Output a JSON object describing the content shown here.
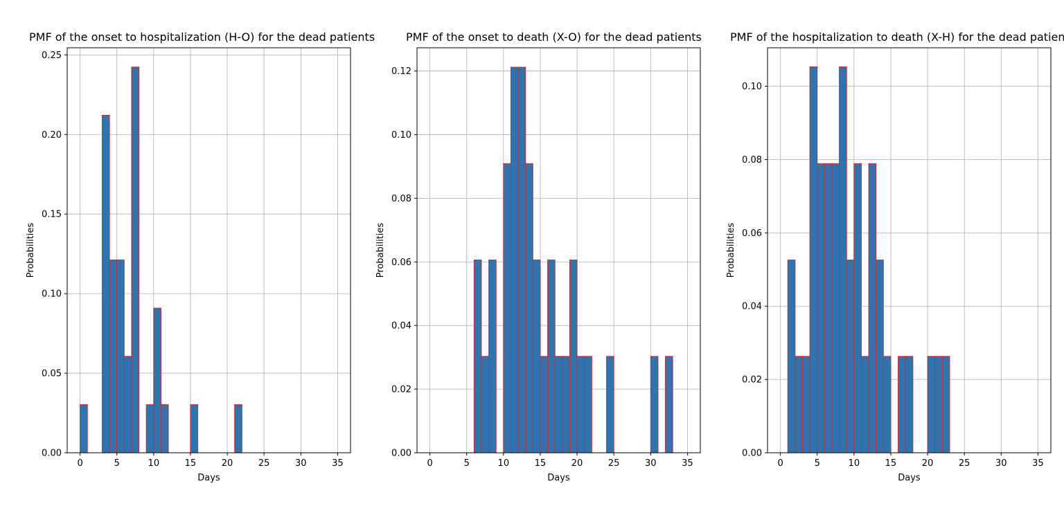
{
  "chart_data": [
    {
      "type": "bar",
      "title": "PMF of the onset to hospitalization (H-O) for the dead patients",
      "xlabel": "Days",
      "ylabel": "Probabilities",
      "xlim": [
        -1.75,
        36.75
      ],
      "ylim": [
        0,
        0.2545
      ],
      "xticks": [
        0,
        5,
        10,
        15,
        20,
        25,
        30,
        35
      ],
      "yticks": [
        0.0,
        0.05,
        0.1,
        0.15,
        0.2,
        0.25
      ],
      "ytick_labels": [
        "0.00",
        "0.05",
        "0.10",
        "0.15",
        "0.20",
        "0.25"
      ],
      "grid": true,
      "bin_width": 1,
      "x": [
        0,
        1,
        2,
        3,
        4,
        5,
        6,
        7,
        8,
        9,
        10,
        11,
        12,
        13,
        14,
        15,
        16,
        17,
        18,
        19,
        20,
        21,
        22,
        23,
        24,
        25,
        26,
        27,
        28,
        29,
        30,
        31,
        32,
        33,
        34
      ],
      "values": [
        0.0303,
        0,
        0,
        0.2121,
        0.1212,
        0.1212,
        0.0606,
        0.2424,
        0,
        0.0303,
        0.0909,
        0.0303,
        0,
        0,
        0,
        0.0303,
        0,
        0,
        0,
        0,
        0,
        0.0303,
        0,
        0,
        0,
        0,
        0,
        0,
        0,
        0,
        0,
        0,
        0,
        0,
        0
      ]
    },
    {
      "type": "bar",
      "title": "PMF of the onset to death (X-O) for the dead patients",
      "xlabel": "Days",
      "ylabel": "Probabilities",
      "xlim": [
        -1.75,
        36.75
      ],
      "ylim": [
        0,
        0.1273
      ],
      "xticks": [
        0,
        5,
        10,
        15,
        20,
        25,
        30,
        35
      ],
      "yticks": [
        0.0,
        0.02,
        0.04,
        0.06,
        0.08,
        0.1,
        0.12
      ],
      "ytick_labels": [
        "0.00",
        "0.02",
        "0.04",
        "0.06",
        "0.08",
        "0.10",
        "0.12"
      ],
      "grid": true,
      "bin_width": 1,
      "x": [
        0,
        1,
        2,
        3,
        4,
        5,
        6,
        7,
        8,
        9,
        10,
        11,
        12,
        13,
        14,
        15,
        16,
        17,
        18,
        19,
        20,
        21,
        22,
        23,
        24,
        25,
        26,
        27,
        28,
        29,
        30,
        31,
        32,
        33,
        34
      ],
      "values": [
        0,
        0,
        0,
        0,
        0,
        0,
        0.0606,
        0.0303,
        0.0606,
        0,
        0.0909,
        0.1212,
        0.1212,
        0.0909,
        0.0606,
        0.0303,
        0.0606,
        0.0303,
        0.0303,
        0.0606,
        0.0303,
        0.0303,
        0,
        0,
        0.0303,
        0,
        0,
        0,
        0,
        0,
        0.0303,
        0,
        0.0303,
        0,
        0
      ]
    },
    {
      "type": "bar",
      "title": "PMF of the hospitalization to death (X-H) for the dead patients",
      "xlabel": "Days",
      "ylabel": "Probabilities",
      "xlim": [
        -1.75,
        36.75
      ],
      "ylim": [
        0,
        0.1105
      ],
      "xticks": [
        0,
        5,
        10,
        15,
        20,
        25,
        30,
        35
      ],
      "yticks": [
        0.0,
        0.02,
        0.04,
        0.06,
        0.08,
        0.1
      ],
      "ytick_labels": [
        "0.00",
        "0.02",
        "0.04",
        "0.06",
        "0.08",
        "0.10"
      ],
      "grid": true,
      "bin_width": 1,
      "x": [
        0,
        1,
        2,
        3,
        4,
        5,
        6,
        7,
        8,
        9,
        10,
        11,
        12,
        13,
        14,
        15,
        16,
        17,
        18,
        19,
        20,
        21,
        22,
        23,
        24,
        25,
        26,
        27,
        28,
        29,
        30,
        31,
        32,
        33,
        34
      ],
      "values": [
        0,
        0.0526,
        0.0263,
        0.0263,
        0.1053,
        0.0789,
        0.0789,
        0.0789,
        0.1053,
        0.0526,
        0.0789,
        0.0263,
        0.0789,
        0.0526,
        0.0263,
        0,
        0.0263,
        0.0263,
        0,
        0,
        0.0263,
        0.0263,
        0.0263,
        0,
        0,
        0,
        0,
        0,
        0,
        0,
        0,
        0,
        0,
        0,
        0
      ]
    }
  ],
  "colors": {
    "bar_fill": "#2d74b1",
    "bar_edge": "#d62728",
    "grid": "#b0b0b0",
    "axis": "#000000"
  }
}
